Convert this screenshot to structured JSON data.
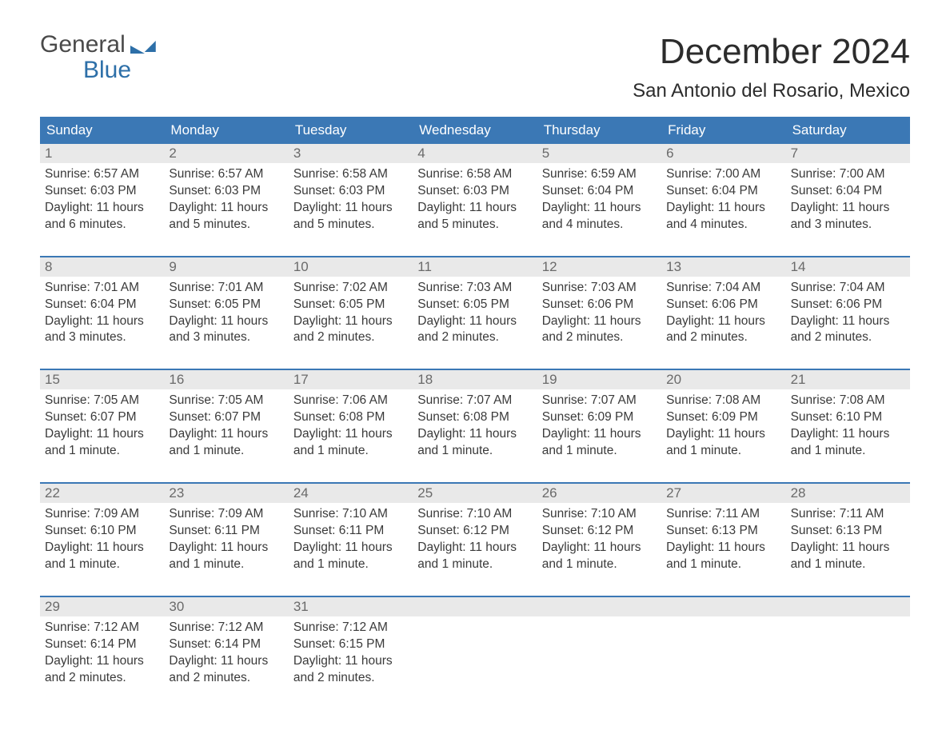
{
  "logo": {
    "line1": "General",
    "line2": "Blue"
  },
  "title": "December 2024",
  "location": "San Antonio del Rosario, Mexico",
  "colors": {
    "header_bg": "#3b78b5",
    "header_text": "#ffffff",
    "daynum_bg": "#e9e9e9",
    "daynum_text": "#6a6a6a",
    "body_text": "#3a3a3a",
    "logo_blue": "#2d6fa8",
    "week_border": "#3b78b5"
  },
  "dow": [
    "Sunday",
    "Monday",
    "Tuesday",
    "Wednesday",
    "Thursday",
    "Friday",
    "Saturday"
  ],
  "weeks": [
    [
      {
        "n": "1",
        "sr": "Sunrise: 6:57 AM",
        "ss": "Sunset: 6:03 PM",
        "d1": "Daylight: 11 hours",
        "d2": "and 6 minutes."
      },
      {
        "n": "2",
        "sr": "Sunrise: 6:57 AM",
        "ss": "Sunset: 6:03 PM",
        "d1": "Daylight: 11 hours",
        "d2": "and 5 minutes."
      },
      {
        "n": "3",
        "sr": "Sunrise: 6:58 AM",
        "ss": "Sunset: 6:03 PM",
        "d1": "Daylight: 11 hours",
        "d2": "and 5 minutes."
      },
      {
        "n": "4",
        "sr": "Sunrise: 6:58 AM",
        "ss": "Sunset: 6:03 PM",
        "d1": "Daylight: 11 hours",
        "d2": "and 5 minutes."
      },
      {
        "n": "5",
        "sr": "Sunrise: 6:59 AM",
        "ss": "Sunset: 6:04 PM",
        "d1": "Daylight: 11 hours",
        "d2": "and 4 minutes."
      },
      {
        "n": "6",
        "sr": "Sunrise: 7:00 AM",
        "ss": "Sunset: 6:04 PM",
        "d1": "Daylight: 11 hours",
        "d2": "and 4 minutes."
      },
      {
        "n": "7",
        "sr": "Sunrise: 7:00 AM",
        "ss": "Sunset: 6:04 PM",
        "d1": "Daylight: 11 hours",
        "d2": "and 3 minutes."
      }
    ],
    [
      {
        "n": "8",
        "sr": "Sunrise: 7:01 AM",
        "ss": "Sunset: 6:04 PM",
        "d1": "Daylight: 11 hours",
        "d2": "and 3 minutes."
      },
      {
        "n": "9",
        "sr": "Sunrise: 7:01 AM",
        "ss": "Sunset: 6:05 PM",
        "d1": "Daylight: 11 hours",
        "d2": "and 3 minutes."
      },
      {
        "n": "10",
        "sr": "Sunrise: 7:02 AM",
        "ss": "Sunset: 6:05 PM",
        "d1": "Daylight: 11 hours",
        "d2": "and 2 minutes."
      },
      {
        "n": "11",
        "sr": "Sunrise: 7:03 AM",
        "ss": "Sunset: 6:05 PM",
        "d1": "Daylight: 11 hours",
        "d2": "and 2 minutes."
      },
      {
        "n": "12",
        "sr": "Sunrise: 7:03 AM",
        "ss": "Sunset: 6:06 PM",
        "d1": "Daylight: 11 hours",
        "d2": "and 2 minutes."
      },
      {
        "n": "13",
        "sr": "Sunrise: 7:04 AM",
        "ss": "Sunset: 6:06 PM",
        "d1": "Daylight: 11 hours",
        "d2": "and 2 minutes."
      },
      {
        "n": "14",
        "sr": "Sunrise: 7:04 AM",
        "ss": "Sunset: 6:06 PM",
        "d1": "Daylight: 11 hours",
        "d2": "and 2 minutes."
      }
    ],
    [
      {
        "n": "15",
        "sr": "Sunrise: 7:05 AM",
        "ss": "Sunset: 6:07 PM",
        "d1": "Daylight: 11 hours",
        "d2": "and 1 minute."
      },
      {
        "n": "16",
        "sr": "Sunrise: 7:05 AM",
        "ss": "Sunset: 6:07 PM",
        "d1": "Daylight: 11 hours",
        "d2": "and 1 minute."
      },
      {
        "n": "17",
        "sr": "Sunrise: 7:06 AM",
        "ss": "Sunset: 6:08 PM",
        "d1": "Daylight: 11 hours",
        "d2": "and 1 minute."
      },
      {
        "n": "18",
        "sr": "Sunrise: 7:07 AM",
        "ss": "Sunset: 6:08 PM",
        "d1": "Daylight: 11 hours",
        "d2": "and 1 minute."
      },
      {
        "n": "19",
        "sr": "Sunrise: 7:07 AM",
        "ss": "Sunset: 6:09 PM",
        "d1": "Daylight: 11 hours",
        "d2": "and 1 minute."
      },
      {
        "n": "20",
        "sr": "Sunrise: 7:08 AM",
        "ss": "Sunset: 6:09 PM",
        "d1": "Daylight: 11 hours",
        "d2": "and 1 minute."
      },
      {
        "n": "21",
        "sr": "Sunrise: 7:08 AM",
        "ss": "Sunset: 6:10 PM",
        "d1": "Daylight: 11 hours",
        "d2": "and 1 minute."
      }
    ],
    [
      {
        "n": "22",
        "sr": "Sunrise: 7:09 AM",
        "ss": "Sunset: 6:10 PM",
        "d1": "Daylight: 11 hours",
        "d2": "and 1 minute."
      },
      {
        "n": "23",
        "sr": "Sunrise: 7:09 AM",
        "ss": "Sunset: 6:11 PM",
        "d1": "Daylight: 11 hours",
        "d2": "and 1 minute."
      },
      {
        "n": "24",
        "sr": "Sunrise: 7:10 AM",
        "ss": "Sunset: 6:11 PM",
        "d1": "Daylight: 11 hours",
        "d2": "and 1 minute."
      },
      {
        "n": "25",
        "sr": "Sunrise: 7:10 AM",
        "ss": "Sunset: 6:12 PM",
        "d1": "Daylight: 11 hours",
        "d2": "and 1 minute."
      },
      {
        "n": "26",
        "sr": "Sunrise: 7:10 AM",
        "ss": "Sunset: 6:12 PM",
        "d1": "Daylight: 11 hours",
        "d2": "and 1 minute."
      },
      {
        "n": "27",
        "sr": "Sunrise: 7:11 AM",
        "ss": "Sunset: 6:13 PM",
        "d1": "Daylight: 11 hours",
        "d2": "and 1 minute."
      },
      {
        "n": "28",
        "sr": "Sunrise: 7:11 AM",
        "ss": "Sunset: 6:13 PM",
        "d1": "Daylight: 11 hours",
        "d2": "and 1 minute."
      }
    ],
    [
      {
        "n": "29",
        "sr": "Sunrise: 7:12 AM",
        "ss": "Sunset: 6:14 PM",
        "d1": "Daylight: 11 hours",
        "d2": "and 2 minutes."
      },
      {
        "n": "30",
        "sr": "Sunrise: 7:12 AM",
        "ss": "Sunset: 6:14 PM",
        "d1": "Daylight: 11 hours",
        "d2": "and 2 minutes."
      },
      {
        "n": "31",
        "sr": "Sunrise: 7:12 AM",
        "ss": "Sunset: 6:15 PM",
        "d1": "Daylight: 11 hours",
        "d2": "and 2 minutes."
      },
      null,
      null,
      null,
      null
    ]
  ]
}
